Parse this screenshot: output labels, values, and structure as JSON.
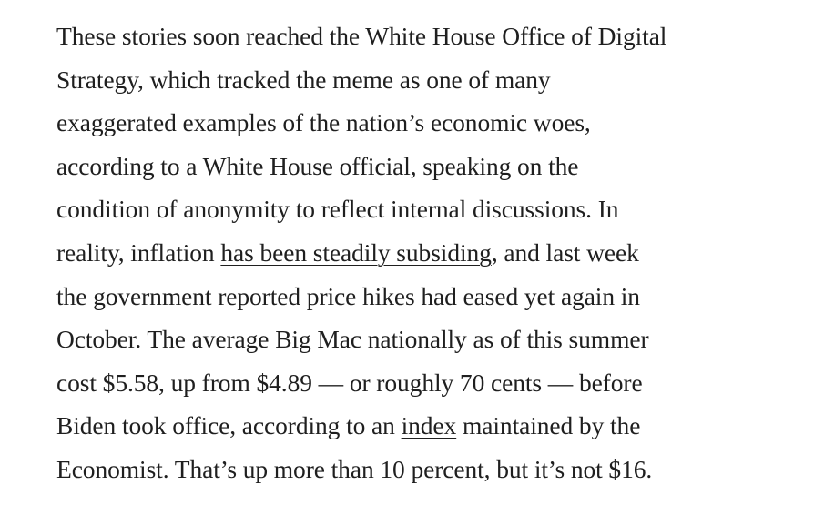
{
  "article": {
    "lines": [
      {
        "text": "These stories soon reached the White House Office of Digital"
      },
      {
        "text": "Strategy, which tracked the meme as one of many"
      },
      {
        "text": "exaggerated examples of the nation’s economic woes,"
      },
      {
        "text": "according to a White House official, speaking on the"
      },
      {
        "text": "condition of anonymity to reflect internal discussions. In"
      },
      {
        "before": "reality, inflation ",
        "link": "has been steadily subsiding",
        "after": ", and last week"
      },
      {
        "text": "the government reported price hikes had eased yet again in"
      },
      {
        "text": "October. The average Big Mac nationally as of this summer"
      },
      {
        "text": "cost $5.58, up from $4.89 — or roughly 70 cents — before"
      },
      {
        "before": "Biden took office, according to an ",
        "link": "index",
        "after": " maintained by the"
      },
      {
        "text": "Economist. That’s up more than 10 percent, but it’s not $16."
      }
    ]
  }
}
